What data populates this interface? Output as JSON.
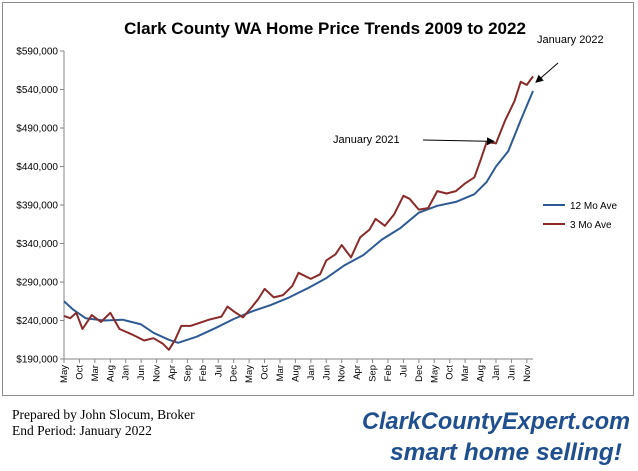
{
  "footer": {
    "line1": "Prepared by John Slocum, Broker",
    "line2": "End Period: January 2022"
  },
  "logo": {
    "line1": "ClarkCountyExpert.com",
    "line2": "smart home selling!"
  },
  "colors": {
    "series_12mo": "#2e5b95",
    "series_3mo": "#8b2a2a",
    "logo_text": "#1f4f8f",
    "logo_outline": "#ffffff"
  },
  "chart_data": {
    "type": "line",
    "title": "Clark County WA Home Price Trends 2009 to 2022",
    "xlabel": "",
    "ylabel": "",
    "ylim": [
      190000,
      590000
    ],
    "yticks": [
      190000,
      240000,
      290000,
      340000,
      390000,
      440000,
      490000,
      540000,
      590000
    ],
    "ytick_labels": [
      "$190,000",
      "$240,000",
      "$290,000",
      "$340,000",
      "$390,000",
      "$440,000",
      "$490,000",
      "$540,000",
      "$590,000"
    ],
    "x_start": "2009-05",
    "x_end": "2022-01",
    "xtick_labels": [
      "May",
      "Oct",
      "Mar",
      "Aug",
      "Jan",
      "Jun",
      "Nov",
      "Apr",
      "Sep",
      "Feb",
      "Jul",
      "Dec",
      "May",
      "Oct",
      "Mar",
      "Aug",
      "Jan",
      "Jun",
      "Nov",
      "Apr",
      "Sep",
      "Feb",
      "Jul",
      "Dec",
      "May",
      "Oct",
      "Mar",
      "Aug",
      "Jan",
      "Jun",
      "Nov"
    ],
    "grid": false,
    "legend_position": "right",
    "annotations": [
      {
        "text": "January 2021",
        "x": "2021-01",
        "y": 470000
      },
      {
        "text": "January 2022",
        "x": "2022-01",
        "y": 556000
      }
    ],
    "series": [
      {
        "name": "12 Mo Ave",
        "anchors": [
          [
            "2009-05",
            265000
          ],
          [
            "2009-08",
            254000
          ],
          [
            "2009-12",
            243000
          ],
          [
            "2010-06",
            240000
          ],
          [
            "2010-12",
            241000
          ],
          [
            "2011-06",
            235000
          ],
          [
            "2011-10",
            224000
          ],
          [
            "2012-03",
            215000
          ],
          [
            "2012-06",
            211000
          ],
          [
            "2012-12",
            219000
          ],
          [
            "2013-06",
            230000
          ],
          [
            "2013-12",
            242000
          ],
          [
            "2014-06",
            252000
          ],
          [
            "2014-12",
            260000
          ],
          [
            "2015-06",
            270000
          ],
          [
            "2015-12",
            282000
          ],
          [
            "2016-06",
            295000
          ],
          [
            "2016-12",
            312000
          ],
          [
            "2017-06",
            325000
          ],
          [
            "2017-12",
            345000
          ],
          [
            "2018-06",
            360000
          ],
          [
            "2018-12",
            380000
          ],
          [
            "2019-06",
            389000
          ],
          [
            "2019-12",
            394000
          ],
          [
            "2020-06",
            404000
          ],
          [
            "2020-10",
            420000
          ],
          [
            "2021-01",
            440000
          ],
          [
            "2021-05",
            460000
          ],
          [
            "2021-09",
            500000
          ],
          [
            "2022-01",
            538000
          ]
        ]
      },
      {
        "name": "3 Mo Ave",
        "anchors": [
          [
            "2009-05",
            246000
          ],
          [
            "2009-07",
            243000
          ],
          [
            "2009-09",
            250000
          ],
          [
            "2009-11",
            229000
          ],
          [
            "2010-02",
            247000
          ],
          [
            "2010-05",
            238000
          ],
          [
            "2010-08",
            250000
          ],
          [
            "2010-11",
            229000
          ],
          [
            "2011-03",
            222000
          ],
          [
            "2011-07",
            214000
          ],
          [
            "2011-10",
            217000
          ],
          [
            "2012-01",
            210000
          ],
          [
            "2012-03",
            202000
          ],
          [
            "2012-05",
            215000
          ],
          [
            "2012-07",
            233000
          ],
          [
            "2012-10",
            233000
          ],
          [
            "2013-01",
            237000
          ],
          [
            "2013-04",
            241000
          ],
          [
            "2013-08",
            245000
          ],
          [
            "2013-10",
            258000
          ],
          [
            "2013-12",
            252000
          ],
          [
            "2014-03",
            244000
          ],
          [
            "2014-06",
            258000
          ],
          [
            "2014-08",
            268000
          ],
          [
            "2014-10",
            281000
          ],
          [
            "2015-01",
            270000
          ],
          [
            "2015-04",
            273000
          ],
          [
            "2015-07",
            285000
          ],
          [
            "2015-09",
            302000
          ],
          [
            "2016-01",
            294000
          ],
          [
            "2016-04",
            300000
          ],
          [
            "2016-06",
            318000
          ],
          [
            "2016-09",
            326000
          ],
          [
            "2016-11",
            338000
          ],
          [
            "2017-02",
            322000
          ],
          [
            "2017-05",
            348000
          ],
          [
            "2017-08",
            358000
          ],
          [
            "2017-10",
            372000
          ],
          [
            "2018-01",
            363000
          ],
          [
            "2018-04",
            378000
          ],
          [
            "2018-07",
            402000
          ],
          [
            "2018-09",
            398000
          ],
          [
            "2018-12",
            384000
          ],
          [
            "2019-03",
            386000
          ],
          [
            "2019-06",
            408000
          ],
          [
            "2019-09",
            405000
          ],
          [
            "2019-12",
            408000
          ],
          [
            "2020-03",
            418000
          ],
          [
            "2020-06",
            426000
          ],
          [
            "2020-08",
            448000
          ],
          [
            "2020-10",
            472000
          ],
          [
            "2021-01",
            470000
          ],
          [
            "2021-04",
            500000
          ],
          [
            "2021-07",
            525000
          ],
          [
            "2021-09",
            550000
          ],
          [
            "2021-11",
            546000
          ],
          [
            "2022-01",
            557000
          ]
        ]
      }
    ]
  }
}
